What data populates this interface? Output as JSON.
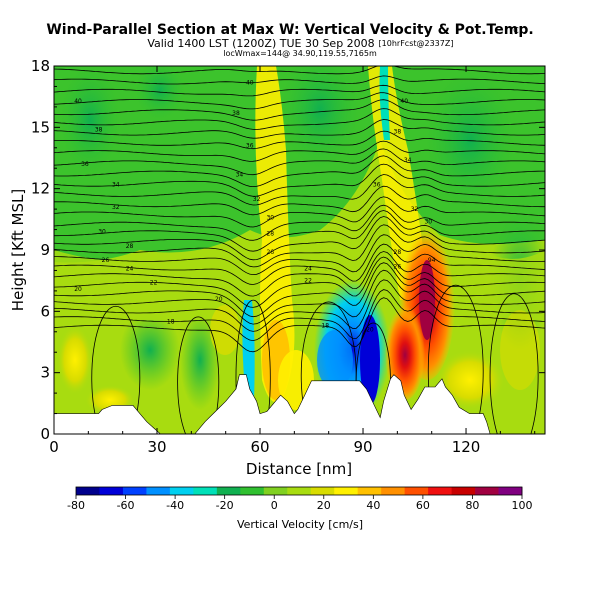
{
  "header": {
    "title": "Wind-Parallel Section at Max W: Vertical Velocity & Pot.Temp.",
    "copyright": "(C)",
    "valid": "Valid 1400 LST (1200Z) TUE 30 Sep 2008",
    "forecast": "[10hrFcst@2337Z]",
    "subtitle": "locWmax=144@ 34.90,119.55,7165m"
  },
  "chart_data": {
    "type": "heatmap",
    "xlabel": "Distance [nm]",
    "ylabel": "Height [Kft MSL]",
    "xlim": [
      0,
      143
    ],
    "ylim": [
      0,
      18
    ],
    "x_ticks": [
      "0",
      "30",
      "60",
      "90",
      "120"
    ],
    "y_ticks": [
      "0",
      "3",
      "6",
      "9",
      "12",
      "15",
      "18"
    ],
    "colorbar": {
      "label": "Vertical Velocity [cm/s]",
      "ticks": [
        "-80",
        "-60",
        "-40",
        "-20",
        "0",
        "20",
        "40",
        "60",
        "80",
        "100"
      ],
      "levels": [
        -80,
        -70,
        -60,
        -50,
        -40,
        -30,
        -20,
        -10,
        0,
        10,
        20,
        30,
        40,
        50,
        60,
        70,
        80,
        90,
        100
      ],
      "colors": [
        "#00008c",
        "#0000d8",
        "#0040ff",
        "#0090ff",
        "#00d0f0",
        "#00e0b8",
        "#10b050",
        "#30c030",
        "#80d020",
        "#a8dc10",
        "#d8dc00",
        "#fff000",
        "#ffc000",
        "#ff9000",
        "#ff5000",
        "#f01010",
        "#c80000",
        "#a00040",
        "#800080"
      ]
    },
    "terrain_kft": [
      [
        0,
        1.0
      ],
      [
        13,
        1.0
      ],
      [
        14,
        1.2
      ],
      [
        17,
        1.4
      ],
      [
        23,
        1.4
      ],
      [
        25,
        1.0
      ],
      [
        27,
        0.6
      ],
      [
        29,
        0.3
      ],
      [
        31,
        0.0
      ],
      [
        41,
        0.0
      ],
      [
        44,
        0.6
      ],
      [
        47,
        1.1
      ],
      [
        50,
        1.6
      ],
      [
        53,
        2.2
      ],
      [
        54,
        2.9
      ],
      [
        56,
        2.9
      ],
      [
        57,
        2.2
      ],
      [
        59,
        1.6
      ],
      [
        60,
        1.0
      ],
      [
        62,
        1.1
      ],
      [
        65,
        1.7
      ],
      [
        66,
        1.9
      ],
      [
        68,
        1.6
      ],
      [
        70,
        1.0
      ],
      [
        71,
        1.2
      ],
      [
        73,
        1.9
      ],
      [
        75,
        2.6
      ],
      [
        89,
        2.6
      ],
      [
        91,
        2.2
      ],
      [
        93,
        1.5
      ],
      [
        95,
        0.8
      ],
      [
        96,
        1.6
      ],
      [
        98,
        2.7
      ],
      [
        99,
        2.9
      ],
      [
        101,
        2.6
      ],
      [
        102,
        1.9
      ],
      [
        104,
        1.2
      ],
      [
        106,
        1.7
      ],
      [
        108,
        2.3
      ],
      [
        111,
        2.3
      ],
      [
        113,
        2.7
      ],
      [
        114,
        2.3
      ],
      [
        116,
        1.9
      ],
      [
        118,
        1.3
      ],
      [
        121,
        1.0
      ],
      [
        125,
        1.0
      ],
      [
        126,
        0.6
      ],
      [
        127,
        0.0
      ],
      [
        143,
        0.0
      ]
    ],
    "contour_labels": [
      {
        "x": 7,
        "y": 16.3,
        "text": "40"
      },
      {
        "x": 13,
        "y": 14.9,
        "text": "38"
      },
      {
        "x": 9,
        "y": 13.2,
        "text": "36"
      },
      {
        "x": 18,
        "y": 12.2,
        "text": "34"
      },
      {
        "x": 18,
        "y": 11.1,
        "text": "32"
      },
      {
        "x": 14,
        "y": 9.9,
        "text": "30"
      },
      {
        "x": 22,
        "y": 9.2,
        "text": "28"
      },
      {
        "x": 15,
        "y": 8.5,
        "text": "26"
      },
      {
        "x": 22,
        "y": 8.1,
        "text": "24"
      },
      {
        "x": 7,
        "y": 7.1,
        "text": "20"
      },
      {
        "x": 29,
        "y": 7.4,
        "text": "22"
      },
      {
        "x": 34,
        "y": 5.5,
        "text": "18"
      },
      {
        "x": 48,
        "y": 6.6,
        "text": "20"
      },
      {
        "x": 57,
        "y": 17.2,
        "text": "40"
      },
      {
        "x": 53,
        "y": 15.7,
        "text": "38"
      },
      {
        "x": 57,
        "y": 14.1,
        "text": "36"
      },
      {
        "x": 54,
        "y": 12.7,
        "text": "34"
      },
      {
        "x": 59,
        "y": 11.5,
        "text": "32"
      },
      {
        "x": 63,
        "y": 10.6,
        "text": "30"
      },
      {
        "x": 63,
        "y": 9.8,
        "text": "28"
      },
      {
        "x": 63,
        "y": 8.9,
        "text": "26"
      },
      {
        "x": 74,
        "y": 8.1,
        "text": "24"
      },
      {
        "x": 74,
        "y": 7.5,
        "text": "22"
      },
      {
        "x": 79,
        "y": 5.3,
        "text": "18"
      },
      {
        "x": 92,
        "y": 5.1,
        "text": "20"
      },
      {
        "x": 102,
        "y": 16.3,
        "text": "40"
      },
      {
        "x": 100,
        "y": 14.8,
        "text": "38"
      },
      {
        "x": 103,
        "y": 13.4,
        "text": "34"
      },
      {
        "x": 94,
        "y": 12.2,
        "text": "36"
      },
      {
        "x": 105,
        "y": 11.0,
        "text": "32"
      },
      {
        "x": 109,
        "y": 10.4,
        "text": "30"
      },
      {
        "x": 100,
        "y": 8.9,
        "text": "28"
      },
      {
        "x": 100,
        "y": 8.2,
        "text": "26"
      },
      {
        "x": 110,
        "y": 8.5,
        "text": "94"
      }
    ]
  }
}
